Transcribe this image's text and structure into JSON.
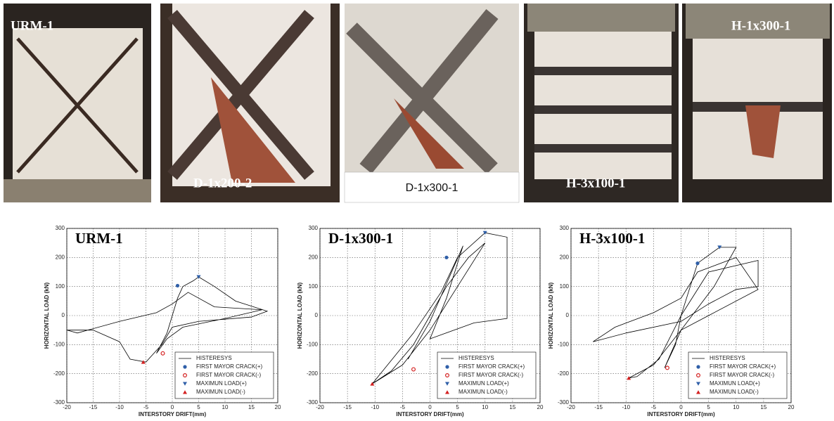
{
  "photos": [
    {
      "label": "URM-1"
    },
    {
      "label": "D-1x200-2"
    },
    {
      "label": "D-1x300-1"
    },
    {
      "label": "H-3x100-1"
    },
    {
      "label": "H-1x300-1"
    }
  ],
  "chart_data": [
    {
      "type": "line",
      "title": "URM-1",
      "xlabel": "INTERSTORY DRIFT(mm)",
      "ylabel": "HORIZONTAL LOAD (kN)",
      "xlim": [
        -20,
        20
      ],
      "ylim": [
        -300,
        300
      ],
      "xticks": [
        -20,
        -15,
        -10,
        -5,
        0,
        5,
        10,
        15,
        20
      ],
      "yticks": [
        -300,
        -200,
        -100,
        0,
        100,
        200,
        300
      ],
      "grid": true,
      "legend": "lower right",
      "series": [
        {
          "name": "HISTERESYS",
          "color": "#000000",
          "marker": "line",
          "x": [
            0,
            1,
            2,
            4,
            5,
            8,
            12,
            18,
            15,
            5,
            0,
            -2,
            -5,
            -8,
            -10,
            -15,
            -20,
            -18,
            -10,
            -3,
            0,
            3,
            8,
            17,
            10,
            2,
            -1,
            -3,
            -1,
            0
          ],
          "values": [
            0,
            60,
            100,
            120,
            133,
            100,
            50,
            15,
            -5,
            -20,
            -40,
            -100,
            -160,
            -150,
            -90,
            -50,
            -50,
            -60,
            -20,
            10,
            40,
            80,
            30,
            20,
            -10,
            -40,
            -80,
            -130,
            -60,
            0
          ]
        },
        {
          "name": "FIRST MAYOR CRACK(+)",
          "color": "#2f5fa8",
          "marker": "circle",
          "x": [
            1
          ],
          "values": [
            103
          ]
        },
        {
          "name": "FIRST MAYOR CRACK(-)",
          "color": "#d42020",
          "marker": "circle-open",
          "x": [
            -1.8
          ],
          "values": [
            -130
          ]
        },
        {
          "name": "MAXIMUN LOAD(+)",
          "color": "#2f5fa8",
          "marker": "triangle-down",
          "x": [
            5
          ],
          "values": [
            133
          ]
        },
        {
          "name": "MAXIMUN LOAD(-)",
          "color": "#d42020",
          "marker": "triangle-up",
          "x": [
            -5.5
          ],
          "values": [
            -160
          ]
        }
      ]
    },
    {
      "type": "line",
      "title": "D-1x300-1",
      "xlabel": "INTERSTORY DRIFT(mm)",
      "ylabel": "HORIZONTAL LOAD (kN)",
      "xlim": [
        -20,
        20
      ],
      "ylim": [
        -300,
        300
      ],
      "xticks": [
        -20,
        -15,
        -10,
        -5,
        0,
        5,
        10,
        15,
        20
      ],
      "yticks": [
        -300,
        -200,
        -100,
        0,
        100,
        200,
        300
      ],
      "grid": true,
      "legend": "lower right",
      "series": [
        {
          "name": "HISTERESYS",
          "color": "#000000",
          "marker": "line",
          "x": [
            -10.5,
            -7,
            -3,
            0,
            3,
            7,
            10,
            5,
            0,
            -5,
            -10.5,
            -9,
            -3,
            2,
            5,
            10,
            14,
            14,
            8,
            0,
            3,
            6,
            0,
            -4
          ],
          "values": [
            -235,
            -190,
            -100,
            0,
            100,
            200,
            250,
            100,
            -50,
            -170,
            -235,
            -200,
            -60,
            80,
            200,
            285,
            270,
            -10,
            -25,
            -80,
            60,
            240,
            -20,
            -150
          ]
        },
        {
          "name": "FIRST MAYOR CRACK(+)",
          "color": "#2f5fa8",
          "marker": "circle",
          "x": [
            3
          ],
          "values": [
            200
          ]
        },
        {
          "name": "FIRST MAYOR CRACK(-)",
          "color": "#d42020",
          "marker": "circle-open",
          "x": [
            -3
          ],
          "values": [
            -185
          ]
        },
        {
          "name": "MAXIMUN LOAD(+)",
          "color": "#2f5fa8",
          "marker": "triangle-down",
          "x": [
            10
          ],
          "values": [
            285
          ]
        },
        {
          "name": "MAXIMUN LOAD(-)",
          "color": "#d42020",
          "marker": "triangle-up",
          "x": [
            -10.5
          ],
          "values": [
            -235
          ]
        }
      ]
    },
    {
      "type": "line",
      "title": "H-3x100-1",
      "xlabel": "INTERSTORY DRIFT(mm)",
      "ylabel": "HORIZONTAL LOAD (kN)",
      "xlim": [
        -20,
        20
      ],
      "ylim": [
        -300,
        300
      ],
      "xticks": [
        -20,
        -15,
        -10,
        -5,
        0,
        5,
        10,
        15,
        20
      ],
      "yticks": [
        -300,
        -200,
        -100,
        0,
        100,
        200,
        300
      ],
      "grid": true,
      "legend": "lower right",
      "series": [
        {
          "name": "HISTERESYS",
          "color": "#000000",
          "marker": "line",
          "x": [
            0,
            3,
            7,
            10,
            6,
            0,
            -5,
            -9.5,
            -8,
            -4,
            0,
            5,
            14,
            14,
            10,
            5,
            0,
            -10,
            -16,
            -12,
            -5,
            0,
            3,
            10,
            14,
            5,
            0,
            -3,
            -1,
            0
          ],
          "values": [
            0,
            180,
            235,
            235,
            100,
            -50,
            -170,
            -215,
            -210,
            -150,
            0,
            150,
            190,
            100,
            90,
            40,
            -20,
            -60,
            -90,
            -40,
            10,
            60,
            150,
            200,
            90,
            0,
            -50,
            -180,
            -100,
            0
          ]
        },
        {
          "name": "FIRST MAYOR CRACK(+)",
          "color": "#2f5fa8",
          "marker": "circle",
          "x": [
            3
          ],
          "values": [
            180
          ]
        },
        {
          "name": "FIRST MAYOR CRACK(-)",
          "color": "#d42020",
          "marker": "circle-open",
          "x": [
            -2.5
          ],
          "values": [
            -180
          ]
        },
        {
          "name": "MAXIMUN LOAD(+)",
          "color": "#2f5fa8",
          "marker": "triangle-down",
          "x": [
            7
          ],
          "values": [
            235
          ]
        },
        {
          "name": "MAXIMUN LOAD(-)",
          "color": "#d42020",
          "marker": "triangle-up",
          "x": [
            -9.5
          ],
          "values": [
            -215
          ]
        }
      ]
    }
  ]
}
